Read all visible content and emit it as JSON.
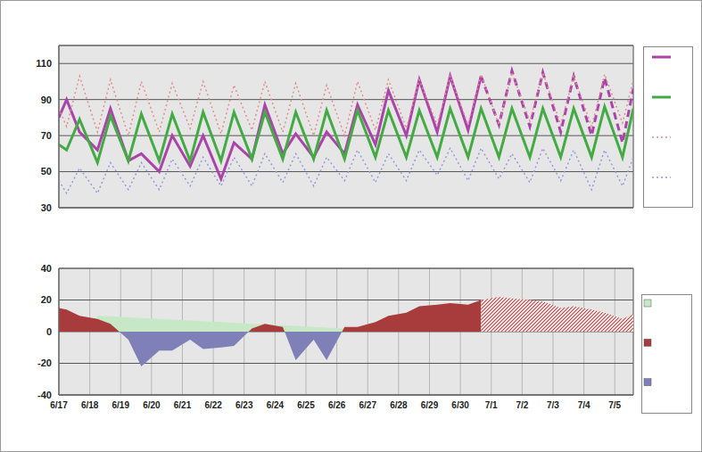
{
  "chart_data": [
    {
      "type": "line",
      "x": [
        0,
        0.25,
        0.67,
        1.25,
        1.67,
        2.25,
        2.67,
        3.25,
        3.67,
        4.25,
        4.67,
        5.25,
        5.67,
        6.25,
        6.67,
        7.25,
        7.67,
        8.25,
        8.67,
        9.25,
        9.67,
        10.25,
        10.67,
        11.25,
        11.67,
        12.25,
        12.67,
        13.25,
        13.67,
        14.25,
        14.67,
        15.25,
        15.67,
        16.25,
        16.67,
        17.25,
        17.67,
        18.25,
        18.6
      ],
      "xlim": [
        0,
        18.6
      ],
      "xticks": [
        0,
        1,
        2,
        3,
        4,
        5,
        6,
        7,
        8,
        9,
        10,
        11,
        12,
        13,
        14,
        15,
        16,
        17,
        18
      ],
      "ylim": [
        30,
        120
      ],
      "yticks": [
        30,
        50,
        70,
        90,
        110
      ],
      "grid": true,
      "tick_labels": "y",
      "series": [
        {
          "color": "#aa44aa",
          "line_style": "solid",
          "values": [
            80,
            90,
            72,
            62,
            85,
            56,
            60,
            50,
            70,
            53,
            70,
            46,
            66,
            57,
            87,
            60,
            71,
            58,
            72,
            60,
            87,
            65,
            95,
            70,
            101,
            72,
            103,
            73,
            103,
            null,
            null,
            null,
            null,
            null,
            null,
            null,
            null,
            null,
            null
          ]
        },
        {
          "color": "#aa44aa",
          "line_style": "dashed",
          "values": [
            null,
            null,
            null,
            null,
            null,
            null,
            null,
            null,
            null,
            null,
            null,
            null,
            null,
            null,
            null,
            null,
            null,
            null,
            null,
            null,
            null,
            null,
            null,
            null,
            null,
            null,
            null,
            null,
            103,
            76,
            106,
            75,
            105,
            72,
            103,
            70,
            102,
            66,
            96
          ]
        },
        {
          "color": "#44aa44",
          "line_style": "solid",
          "values": [
            65,
            62,
            79,
            55,
            81,
            56,
            82,
            56,
            82,
            56,
            83,
            56,
            83,
            57,
            83,
            57,
            83,
            57,
            84,
            57,
            84,
            58,
            84,
            58,
            84,
            58,
            85,
            58,
            85,
            58,
            85,
            58,
            85,
            58,
            85,
            58,
            86,
            58,
            85
          ]
        },
        {
          "color": "#e0908c",
          "line_style": "dotted",
          "values": [
            85,
            75,
            103,
            72,
            101,
            70,
            100,
            72,
            99,
            74,
            100,
            71,
            98,
            73,
            100,
            72,
            99,
            70,
            98,
            70,
            100,
            73,
            101,
            74,
            101,
            76,
            103,
            76,
            104,
            76,
            105,
            78,
            105,
            76,
            103,
            75,
            104,
            77,
            101
          ]
        },
        {
          "color": "#9999dd",
          "line_style": "dotted",
          "values": [
            45,
            38,
            52,
            38,
            55,
            40,
            55,
            40,
            57,
            42,
            58,
            42,
            58,
            42,
            60,
            44,
            60,
            42,
            58,
            45,
            62,
            44,
            60,
            45,
            62,
            48,
            63,
            45,
            63,
            46,
            60,
            44,
            63,
            45,
            62,
            40,
            62,
            42,
            58
          ]
        }
      ]
    },
    {
      "type": "area",
      "x": [
        0,
        0.25,
        0.67,
        1.25,
        1.67,
        2.25,
        2.67,
        3.25,
        3.67,
        4.25,
        4.67,
        5.25,
        5.67,
        6.25,
        6.67,
        7.25,
        7.67,
        8.25,
        8.67,
        9.25,
        9.67,
        10.25,
        10.67,
        11.25,
        11.67,
        12.25,
        12.67,
        13.25,
        13.67,
        14.25,
        14.67,
        15.25,
        15.67,
        16.25,
        16.67,
        17.25,
        17.67,
        18.25,
        18.6
      ],
      "xlim": [
        0,
        18.6
      ],
      "xticks": [
        {
          "value": 0,
          "label": "6/17"
        },
        {
          "value": 1,
          "label": "6/18"
        },
        {
          "value": 2,
          "label": "6/19"
        },
        {
          "value": 3,
          "label": "6/20"
        },
        {
          "value": 4,
          "label": "6/21"
        },
        {
          "value": 5,
          "label": "6/22"
        },
        {
          "value": 6,
          "label": "6/23"
        },
        {
          "value": 7,
          "label": "6/24"
        },
        {
          "value": 8,
          "label": "6/25"
        },
        {
          "value": 9,
          "label": "6/26"
        },
        {
          "value": 10,
          "label": "6/27"
        },
        {
          "value": 11,
          "label": "6/28"
        },
        {
          "value": 12,
          "label": "6/29"
        },
        {
          "value": 13,
          "label": "6/30"
        },
        {
          "value": 14,
          "label": "7/1"
        },
        {
          "value": 15,
          "label": "7/2"
        },
        {
          "value": 16,
          "label": "7/3"
        },
        {
          "value": 17,
          "label": "7/4"
        },
        {
          "value": 18,
          "label": "7/5"
        }
      ],
      "ylim": [
        -40,
        40
      ],
      "yticks": [
        -40,
        -20,
        0,
        20,
        40
      ],
      "grid": true,
      "series": [
        {
          "color": "#c6e8c6",
          "values": [
            null,
            null,
            null,
            10,
            9.6,
            9,
            8.6,
            8,
            7.6,
            7,
            6.6,
            6,
            5.6,
            5,
            4.6,
            4,
            3.6,
            3,
            2.6,
            2,
            1.6,
            1,
            0.6,
            0,
            null,
            null,
            null,
            null,
            null,
            null,
            null,
            null,
            null,
            null,
            null,
            null,
            null,
            null,
            null
          ]
        },
        {
          "colors": [
            "#a83c3c",
            "#8080b8"
          ],
          "values": [
            15,
            14,
            10,
            8,
            5,
            -5,
            -22,
            -12,
            -12,
            -5,
            -11,
            -10,
            -9,
            2,
            5,
            3,
            -18,
            -5,
            -18,
            3,
            3,
            6,
            10,
            12,
            16,
            17,
            18,
            17,
            20,
            null,
            null,
            null,
            null,
            null,
            null,
            null,
            null,
            null,
            null
          ]
        },
        {
          "color": "#a83c3c",
          "line_style": "hatched",
          "values": [
            null,
            null,
            null,
            null,
            null,
            null,
            null,
            null,
            null,
            null,
            null,
            null,
            null,
            null,
            null,
            null,
            null,
            null,
            null,
            null,
            null,
            null,
            null,
            null,
            null,
            null,
            null,
            null,
            20,
            22,
            21,
            20,
            19,
            15,
            16,
            14,
            12,
            8,
            11
          ]
        }
      ]
    }
  ]
}
